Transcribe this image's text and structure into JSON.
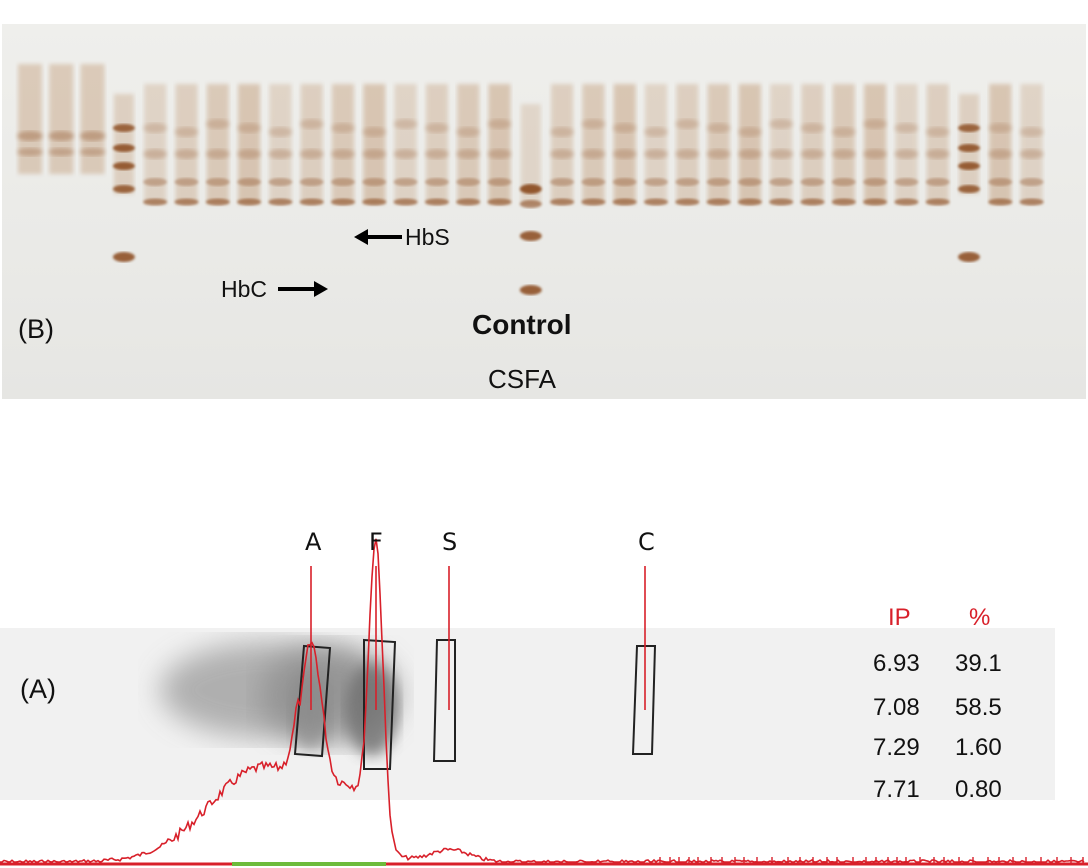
{
  "panel_b": {
    "label": "(B)",
    "annotations": {
      "hbs": "HbS",
      "hbc": "HbC",
      "control_line1": "Control",
      "control_line2": "CSFA"
    }
  },
  "panel_a": {
    "label": "(A)",
    "bands": [
      "A",
      "F",
      "S",
      "C"
    ],
    "table": {
      "headers": [
        "IP",
        "%"
      ],
      "rows": [
        {
          "ip": "6.93",
          "pct": "39.1"
        },
        {
          "ip": "7.08",
          "pct": "58.5"
        },
        {
          "ip": "7.29",
          "pct": "1.60"
        },
        {
          "ip": "7.71",
          "pct": "0.80"
        }
      ]
    }
  },
  "colors": {
    "band_brown": "#8a4a1e",
    "trace_red": "#d8202a",
    "baseline_green": "#6dbb3b",
    "header_red": "#d8202a"
  }
}
